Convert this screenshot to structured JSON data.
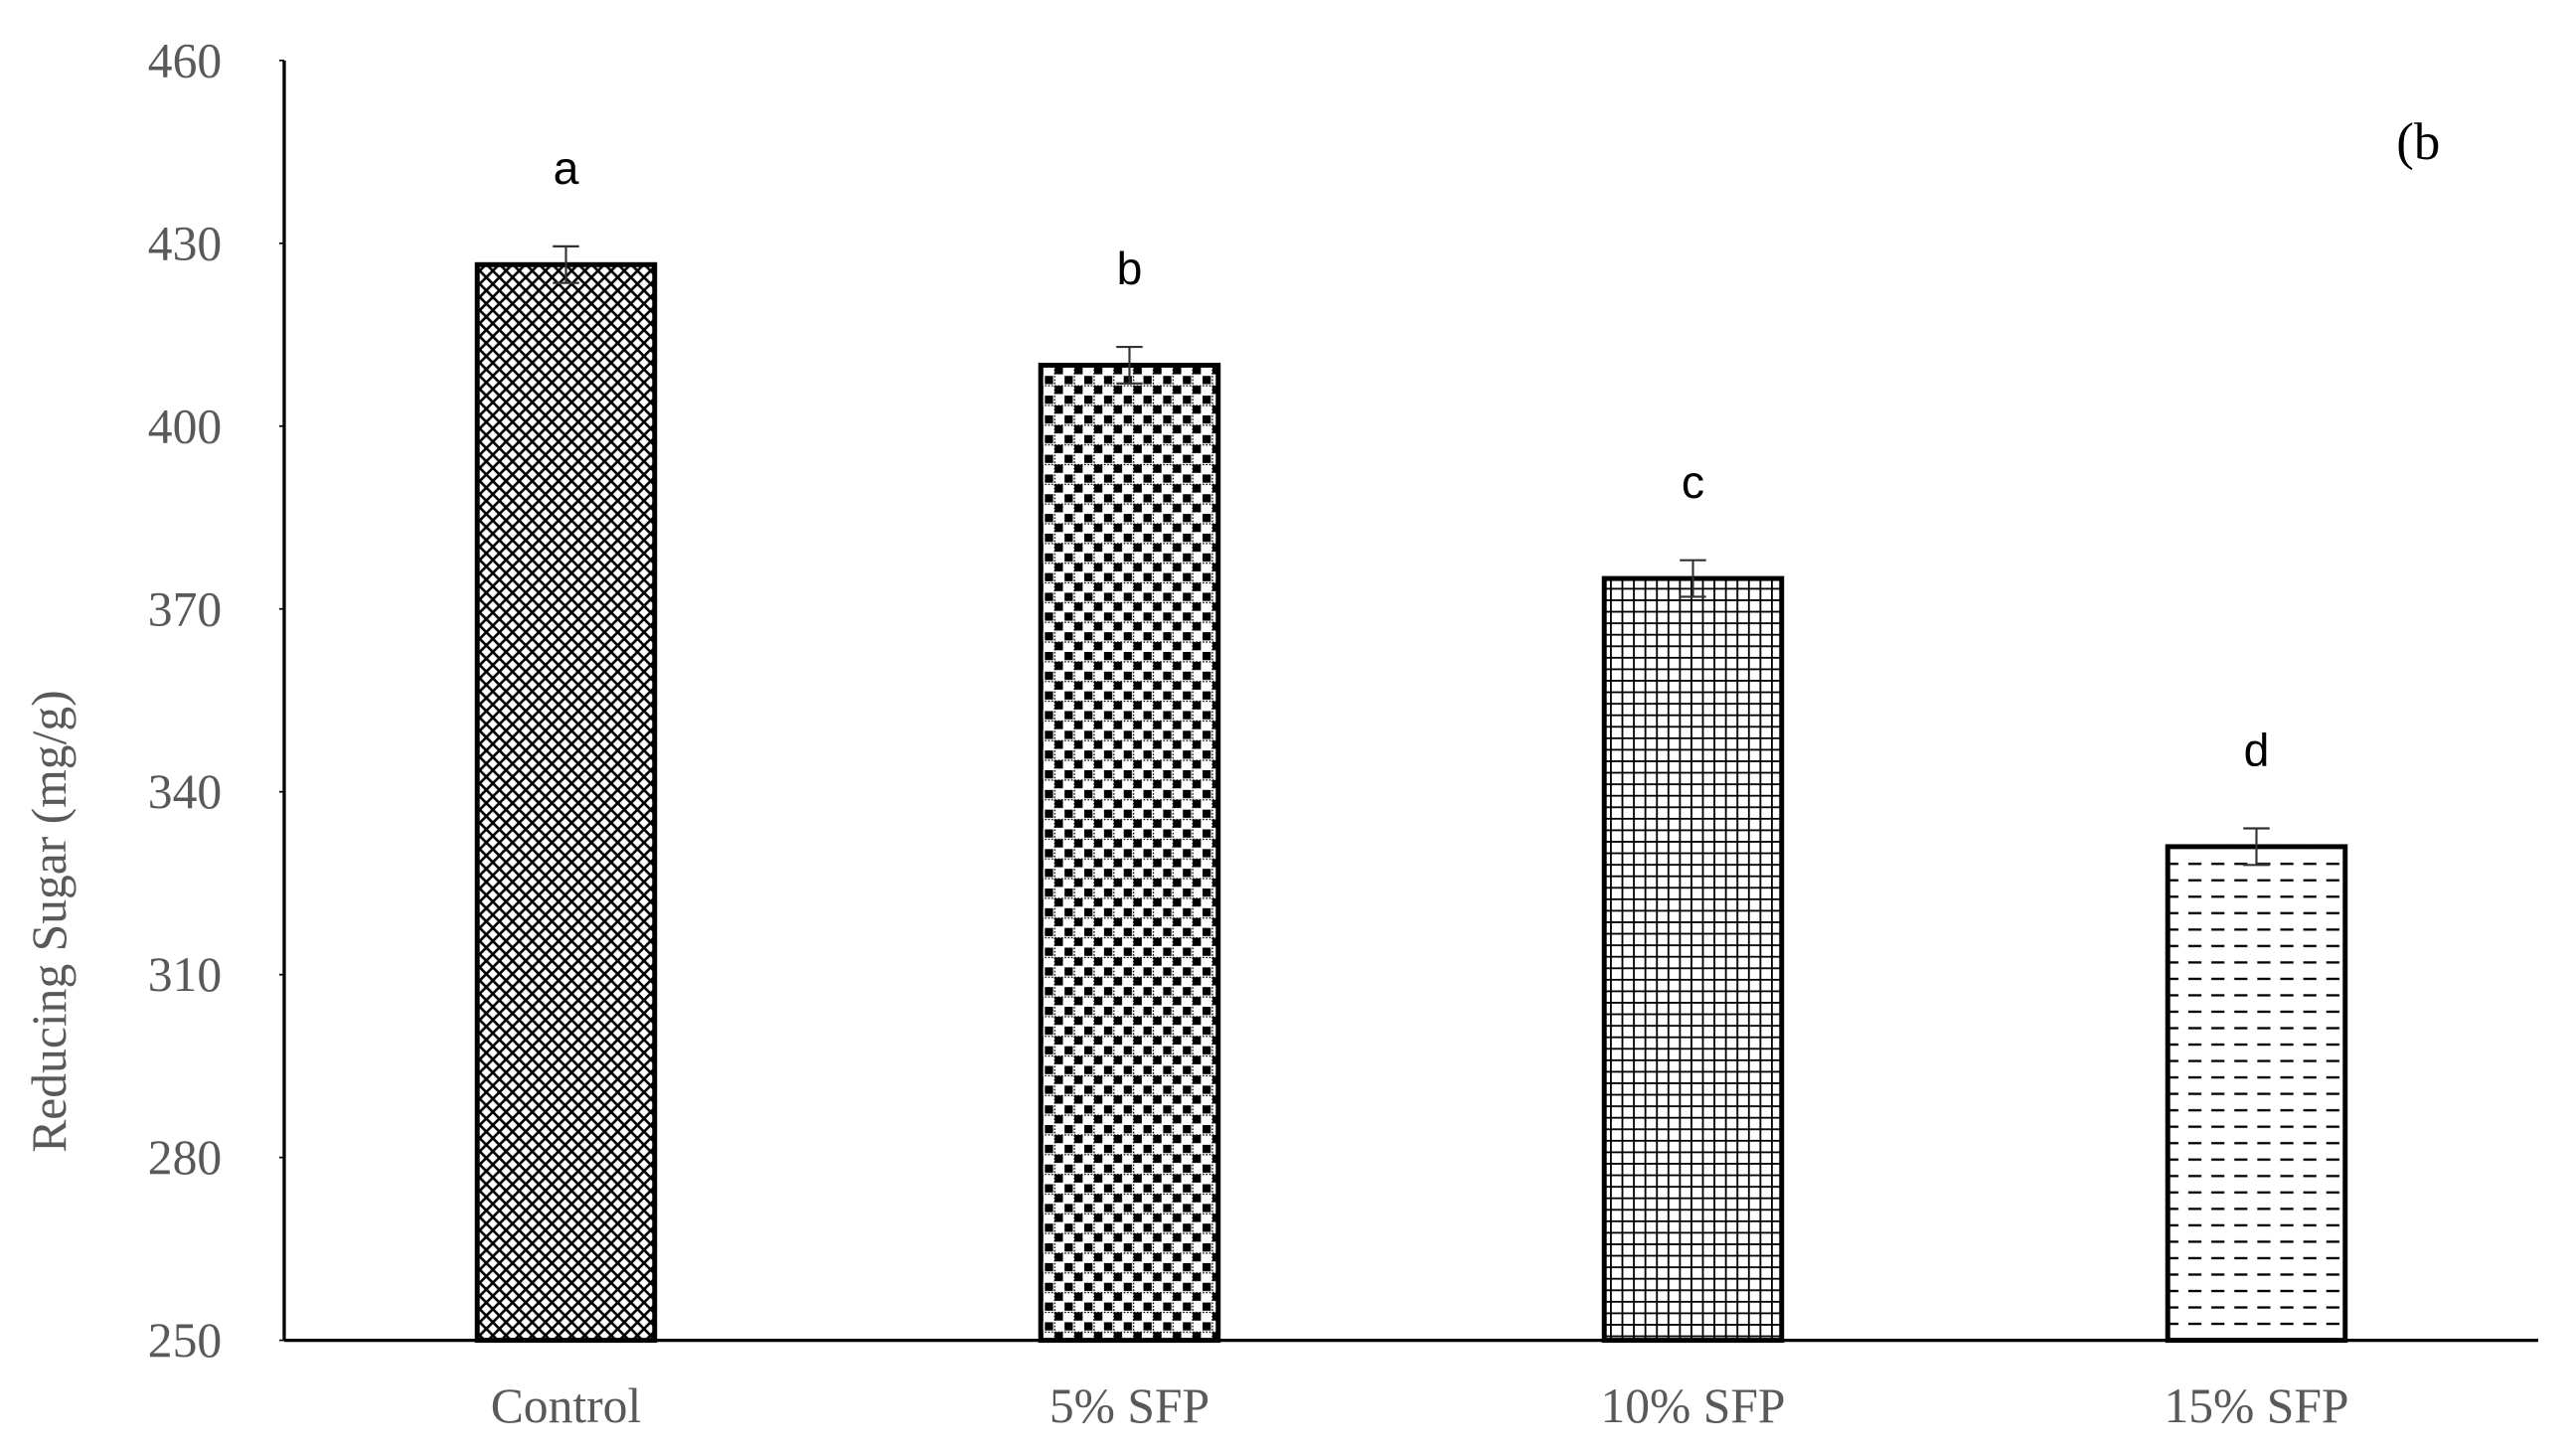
{
  "chart_data": {
    "type": "bar",
    "y_label": "Reducing Sugar (mg/g)",
    "panel_label": "(b",
    "categories": [
      "Control",
      "5% SFP",
      "10% SFP",
      "15% SFP"
    ],
    "values": [
      426.5,
      410,
      375,
      331
    ],
    "errors": [
      3,
      3,
      3,
      3
    ],
    "annotations": [
      "a",
      "b",
      "c",
      "d"
    ],
    "color": "#000000",
    "ylim": [
      250,
      460
    ],
    "yticks": [
      250,
      280,
      310,
      340,
      370,
      400,
      430,
      460
    ]
  }
}
